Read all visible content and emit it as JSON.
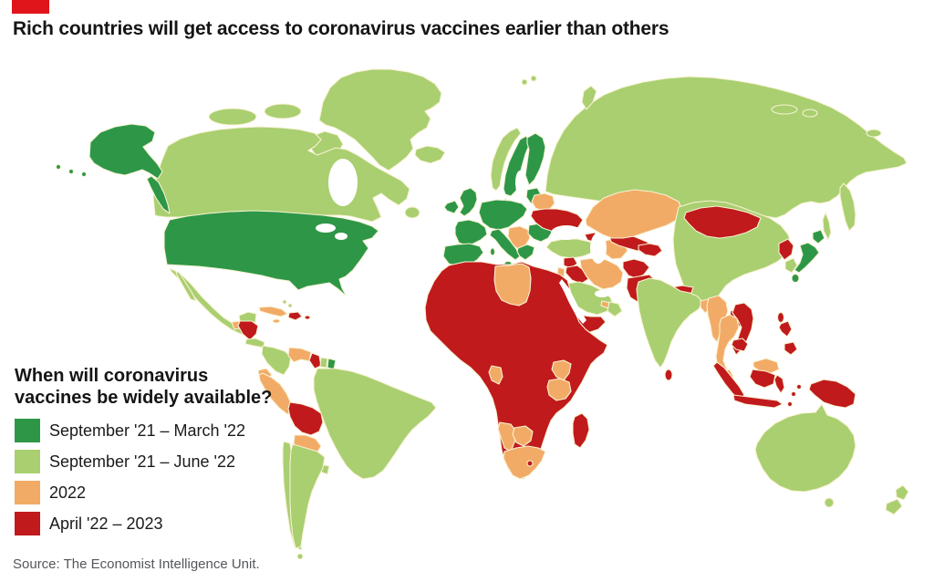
{
  "brand": {
    "tab_color": "#e0151b"
  },
  "title": "Rich countries will get access to coronavirus vaccines earlier than others",
  "legend": {
    "title_line1": "When will coronavirus",
    "title_line2": "vaccines be widely available?"
  },
  "source": "Source: The Economist Intelligence Unit.",
  "map": {
    "ocean_color": "#ffffff",
    "border_color": "#f8f2d4"
  },
  "chart_data": {
    "type": "choropleth",
    "title": "Rich countries will get access to coronavirus vaccines earlier than others",
    "question": "When will coronavirus vaccines be widely available?",
    "source": "The Economist Intelligence Unit",
    "legend_position": "bottom-left",
    "categories": [
      {
        "id": "sep21_mar22",
        "label": "September '21 – March '22",
        "color": "#2d9747"
      },
      {
        "id": "sep21_jun22",
        "label": "September '21 – June '22",
        "color": "#a9cf70"
      },
      {
        "id": "y2022",
        "label": "2022",
        "color": "#f2ab66"
      },
      {
        "id": "apr22_2023",
        "label": "April '22 – 2023",
        "color": "#c01a1c"
      }
    ],
    "regions": {
      "united-states": "sep21_mar22",
      "alaska": "sep21_mar22",
      "alaska-panhandle": "sep21_mar22",
      "aleutian-islands": "sep21_mar22",
      "uk": "sep21_mar22",
      "ireland": "sep21_mar22",
      "france": "sep21_mar22",
      "iberia": "sep21_mar22",
      "central-europe": "sep21_mar22",
      "italy": "sep21_mar22",
      "sicily": "sep21_mar22",
      "sardinia": "sep21_mar22",
      "sweden": "sep21_mar22",
      "finland": "sep21_mar22",
      "denmark": "sep21_mar22",
      "baltics": "sep21_mar22",
      "greece": "sep21_mar22",
      "romania-bulgaria": "sep21_mar22",
      "french-guiana": "sep21_mar22",
      "japan-hokkaido": "sep21_mar22",
      "japan-honshu": "sep21_mar22",
      "japan-kyushu": "sep21_mar22",
      "canada": "sep21_jun22",
      "canadian-arctic-1": "sep21_jun22",
      "canadian-arctic-2": "sep21_jun22",
      "canadian-arctic-3": "sep21_jun22",
      "baffin-island": "sep21_jun22",
      "newfoundland": "sep21_jun22",
      "greenland": "sep21_jun22",
      "iceland": "sep21_jun22",
      "mexico": "sep21_jun22",
      "baja-california": "sep21_jun22",
      "yucatan": "sep21_jun22",
      "costa-rica-panama": "sep21_jun22",
      "bahamas": "sep21_jun22",
      "colombia": "sep21_jun22",
      "suriname": "sep21_jun22",
      "brazil": "sep21_jun22",
      "uruguay": "sep21_jun22",
      "chile": "sep21_jun22",
      "argentina": "sep21_jun22",
      "tierra-del-fuego": "sep21_jun22",
      "norway": "sep21_jun22",
      "russia": "sep21_jun22",
      "kamchatka": "sep21_jun22",
      "sakhalin": "sep21_jun22",
      "russia-arctic-1": "sep21_jun22",
      "russia-arctic-2": "sep21_jun22",
      "russia-arctic-3": "sep21_jun22",
      "novaya-zemlya": "sep21_jun22",
      "svalbard": "sep21_jun22",
      "turkey": "sep21_jun22",
      "saudi-arabia": "sep21_jun22",
      "oman": "sep21_jun22",
      "india": "sep21_jun22",
      "china": "sep21_jun22",
      "south-korea": "sep21_jun22",
      "australia": "sep21_jun22",
      "tasmania": "sep21_jun22",
      "new-zealand-north": "sep21_jun22",
      "new-zealand-south": "sep21_jun22",
      "cuba": "y2022",
      "jamaica": "y2022",
      "guatemala": "y2022",
      "venezuela": "y2022",
      "ecuador": "y2022",
      "peru": "y2022",
      "paraguay": "y2022",
      "belarus": "y2022",
      "western-balkans": "y2022",
      "jordan": "y2022",
      "gulf-states": "y2022",
      "iran": "y2022",
      "turkmenistan": "y2022",
      "kazakhstan": "y2022",
      "libya": "y2022",
      "gabon": "y2022",
      "kenya": "y2022",
      "tanzania": "y2022",
      "namibia": "y2022",
      "botswana": "y2022",
      "south-africa": "y2022",
      "bangladesh": "y2022",
      "myanmar": "y2022",
      "thailand": "y2022",
      "malaysia-peninsula": "y2022",
      "malaysia-borneo": "y2022",
      "honduras-nicaragua": "apr22_2023",
      "hispaniola": "apr22_2023",
      "puerto-rico": "apr22_2023",
      "guyana": "apr22_2023",
      "bolivia": "apr22_2023",
      "ukraine": "apr22_2023",
      "caucasus": "apr22_2023",
      "syria": "apr22_2023",
      "iraq": "apr22_2023",
      "yemen": "apr22_2023",
      "uzbekistan": "apr22_2023",
      "kyrgyzstan-tajikistan": "apr22_2023",
      "afghanistan": "apr22_2023",
      "pakistan": "apr22_2023",
      "nepal": "apr22_2023",
      "sri-lanka": "apr22_2023",
      "mongolia": "apr22_2023",
      "north-korea": "apr22_2023",
      "taiwan": "apr22_2023",
      "laos": "apr22_2023",
      "vietnam": "apr22_2023",
      "cambodia": "apr22_2023",
      "sumatra": "apr22_2023",
      "kalimantan": "apr22_2023",
      "java": "apr22_2023",
      "sulawesi": "apr22_2023",
      "new-guinea": "apr22_2023",
      "philippines-luzon": "apr22_2023",
      "philippines-mindanao": "apr22_2023",
      "maluku-islands": "apr22_2023",
      "madagascar": "apr22_2023",
      "lesotho": "apr22_2023",
      "africa-mainland": "apr22_2023"
    }
  }
}
